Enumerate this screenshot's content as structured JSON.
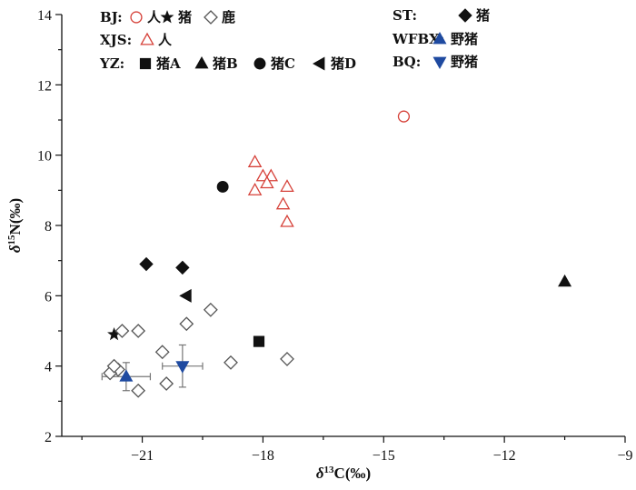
{
  "chart_data": {
    "type": "scatter",
    "xlabel": "δ13C(‰)",
    "ylabel": "δ15N(‰)",
    "xlim": [
      -23,
      -9
    ],
    "ylim": [
      2,
      14
    ],
    "xticks": [
      -21,
      -18,
      -15,
      -12,
      -9
    ],
    "yticks": [
      2,
      4,
      6,
      8,
      10,
      12,
      14
    ],
    "grid": false,
    "legend_position": "top",
    "legend": [
      {
        "site": "BJ:",
        "items": [
          {
            "label": "人",
            "marker": "circle-open",
            "color": "#d6423a"
          },
          {
            "label": "猪",
            "marker": "star",
            "color": "#111111"
          },
          {
            "label": "鹿",
            "marker": "diamond-open",
            "color": "#555555"
          }
        ]
      },
      {
        "site": "XJS:",
        "items": [
          {
            "label": "人",
            "marker": "triangle-up-open",
            "color": "#d6423a"
          }
        ]
      },
      {
        "site": "YZ:",
        "items": [
          {
            "label": "猪A",
            "marker": "square",
            "color": "#111111"
          },
          {
            "label": "猪B",
            "marker": "triangle-up",
            "color": "#111111"
          },
          {
            "label": "猪C",
            "marker": "circle",
            "color": "#111111"
          },
          {
            "label": "猪D",
            "marker": "triangle-left",
            "color": "#111111"
          }
        ]
      },
      {
        "site": "ST:",
        "items": [
          {
            "label": "猪",
            "marker": "diamond",
            "color": "#111111"
          }
        ]
      },
      {
        "site": "WFBX:",
        "items": [
          {
            "label": "野猪",
            "marker": "triangle-up",
            "color": "#1f4aa0"
          }
        ]
      },
      {
        "site": "BQ:",
        "items": [
          {
            "label": "野猪",
            "marker": "triangle-down",
            "color": "#1f4aa0"
          }
        ]
      }
    ],
    "series": [
      {
        "marker": "circle-open",
        "color": "#d6423a",
        "points": [
          [
            -14.5,
            11.1
          ]
        ]
      },
      {
        "marker": "star",
        "color": "#111111",
        "points": [
          [
            -21.7,
            4.9
          ]
        ]
      },
      {
        "marker": "diamond-open",
        "color": "#555555",
        "points": [
          [
            -21.5,
            5.0
          ],
          [
            -21.1,
            5.0
          ],
          [
            -19.3,
            5.6
          ],
          [
            -19.9,
            5.2
          ],
          [
            -20.5,
            4.4
          ],
          [
            -21.6,
            3.9
          ],
          [
            -21.8,
            3.8
          ],
          [
            -21.7,
            4.0
          ],
          [
            -21.1,
            3.3
          ],
          [
            -20.4,
            3.5
          ],
          [
            -18.8,
            4.1
          ],
          [
            -17.4,
            4.2
          ]
        ]
      },
      {
        "marker": "triangle-up-open",
        "color": "#d6423a",
        "points": [
          [
            -18.2,
            9.8
          ],
          [
            -18.0,
            9.4
          ],
          [
            -17.8,
            9.4
          ],
          [
            -17.9,
            9.2
          ],
          [
            -18.2,
            9.0
          ],
          [
            -17.4,
            9.1
          ],
          [
            -17.5,
            8.6
          ],
          [
            -17.4,
            8.1
          ]
        ]
      },
      {
        "marker": "square",
        "color": "#111111",
        "points": [
          [
            -18.1,
            4.7
          ]
        ]
      },
      {
        "marker": "triangle-up",
        "color": "#111111",
        "points": [
          [
            -10.5,
            6.4
          ]
        ]
      },
      {
        "marker": "circle",
        "color": "#111111",
        "points": [
          [
            -19.0,
            9.1
          ]
        ]
      },
      {
        "marker": "triangle-left",
        "color": "#111111",
        "points": [
          [
            -19.9,
            6.0
          ]
        ]
      },
      {
        "marker": "diamond",
        "color": "#111111",
        "points": [
          [
            -20.9,
            6.9
          ],
          [
            -20.0,
            6.8
          ]
        ]
      },
      {
        "marker": "triangle-up",
        "color": "#1f4aa0",
        "points": [
          [
            -21.4,
            3.7
          ]
        ],
        "error_x": [
          0.6
        ],
        "error_y": [
          0.4
        ]
      },
      {
        "marker": "triangle-down",
        "color": "#1f4aa0",
        "points": [
          [
            -20.0,
            4.0
          ]
        ],
        "error_x": [
          0.5
        ],
        "error_y": [
          0.6
        ]
      }
    ]
  }
}
